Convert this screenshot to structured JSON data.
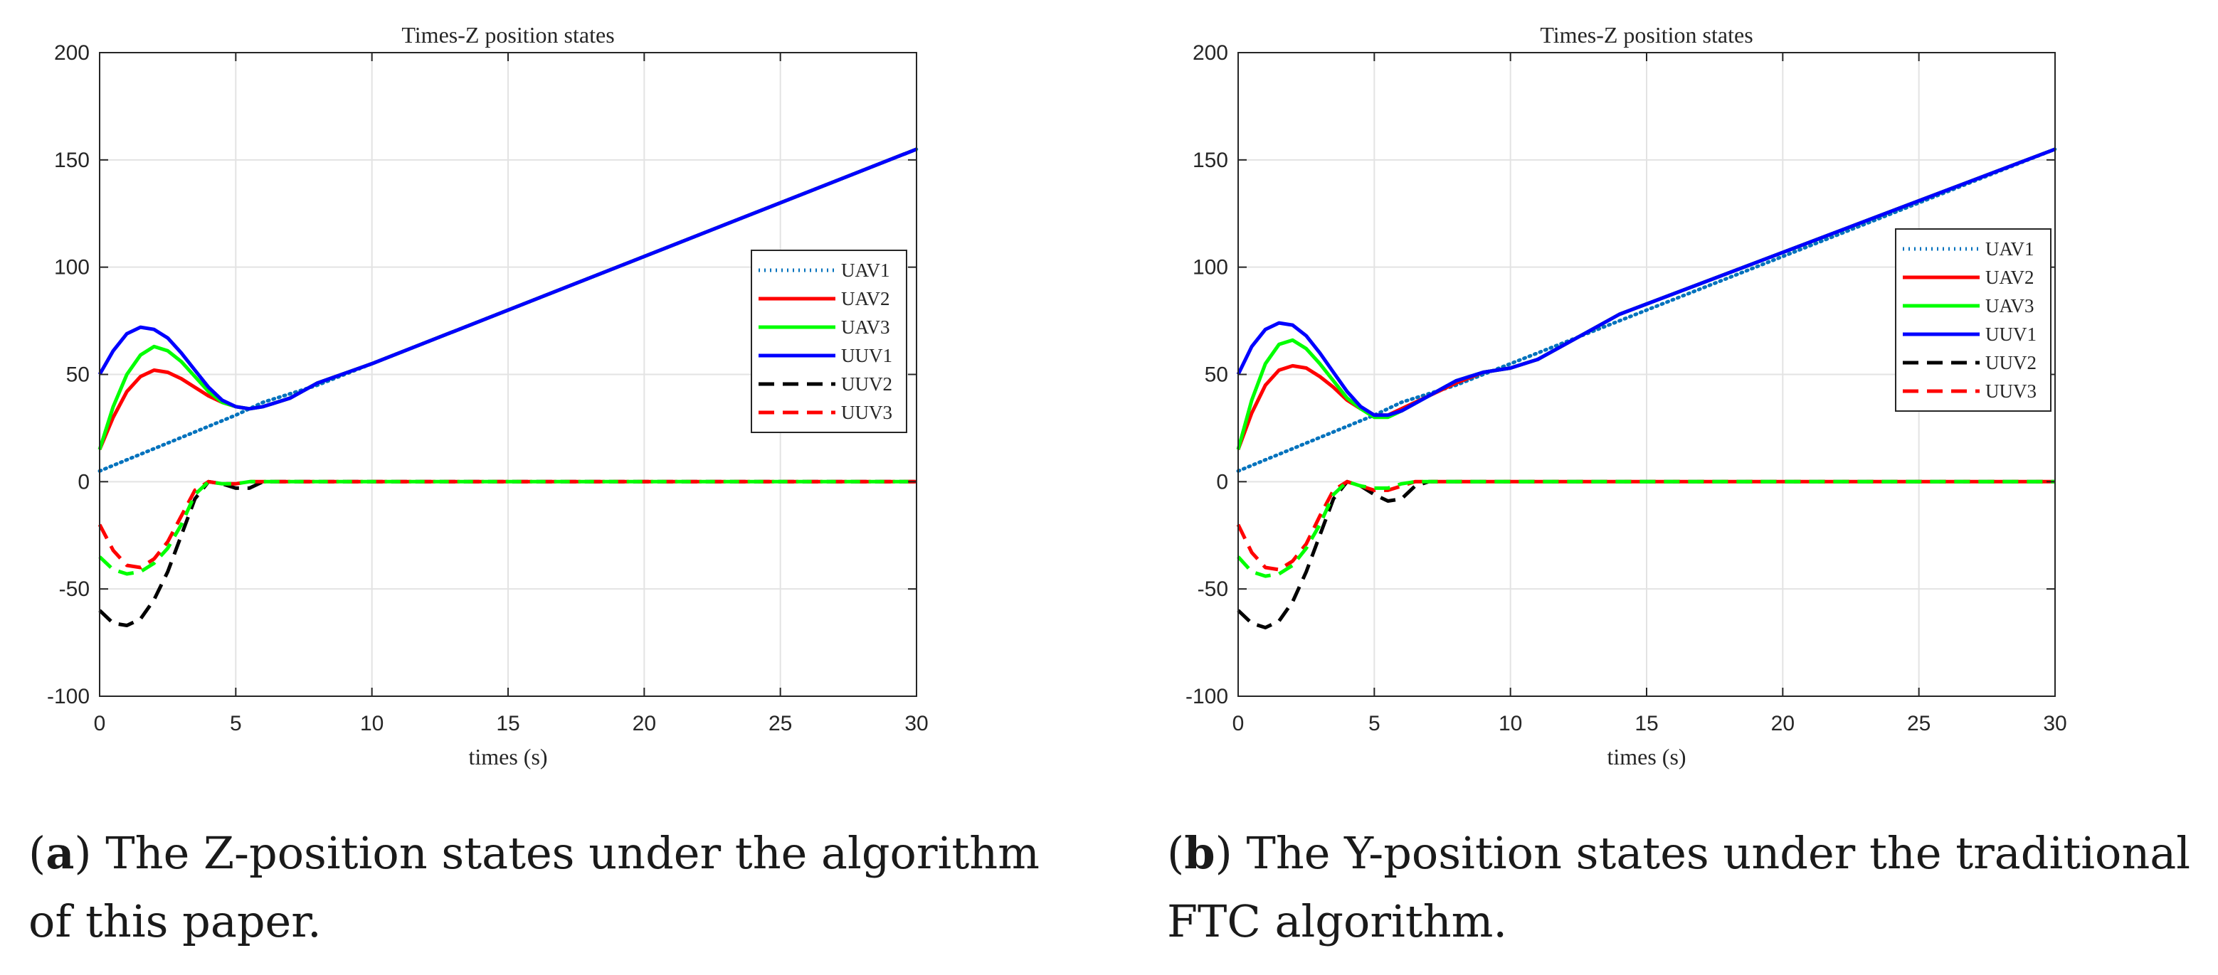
{
  "chart_data": [
    {
      "type": "line",
      "title": "Times-Z position states",
      "xlabel": "times (s)",
      "ylabel": "",
      "xlim": [
        0,
        30
      ],
      "ylim": [
        -100,
        200
      ],
      "xticks": [
        0,
        5,
        10,
        15,
        20,
        25,
        30
      ],
      "yticks": [
        -100,
        -50,
        0,
        50,
        100,
        150,
        200
      ],
      "grid": true,
      "legend_position": "right",
      "series": [
        {
          "name": "UAV1",
          "color": "#0072BD",
          "style": "dotted",
          "x": [
            0,
            5,
            6,
            8,
            10,
            30
          ],
          "y": [
            5,
            31,
            37,
            45,
            55,
            155
          ]
        },
        {
          "name": "UAV2",
          "color": "#FF0000",
          "style": "solid",
          "x": [
            0,
            0.5,
            1,
            1.5,
            2,
            2.5,
            3,
            3.5,
            4,
            4.5,
            5,
            5.5,
            6,
            7,
            8,
            10,
            30
          ],
          "y": [
            15,
            30,
            42,
            49,
            52,
            51,
            48,
            44,
            40,
            37,
            35,
            34,
            35,
            39,
            46,
            55,
            155
          ]
        },
        {
          "name": "UAV3",
          "color": "#00FF00",
          "style": "solid",
          "x": [
            0,
            0.5,
            1,
            1.5,
            2,
            2.5,
            3,
            3.5,
            4,
            4.5,
            5,
            5.5,
            6,
            7,
            8,
            10,
            30
          ],
          "y": [
            15,
            35,
            50,
            59,
            63,
            61,
            56,
            49,
            42,
            37,
            35,
            34,
            35,
            39,
            46,
            55,
            155
          ]
        },
        {
          "name": "UUV1",
          "color": "#0000FF",
          "style": "solid",
          "x": [
            0,
            0.5,
            1,
            1.5,
            2,
            2.5,
            3,
            3.5,
            4,
            4.5,
            5,
            5.5,
            6,
            7,
            8,
            10,
            30
          ],
          "y": [
            50,
            61,
            69,
            72,
            71,
            67,
            60,
            52,
            44,
            38,
            35,
            34,
            35,
            39,
            46,
            55,
            155
          ]
        },
        {
          "name": "UUV2",
          "color": "#000000",
          "style": "dashed",
          "x": [
            0,
            0.5,
            1,
            1.5,
            2,
            2.5,
            3,
            3.5,
            4,
            4.5,
            5,
            5.5,
            6,
            30
          ],
          "y": [
            -60,
            -66,
            -67,
            -64,
            -55,
            -42,
            -25,
            -8,
            0,
            -1,
            -3,
            -3,
            0,
            0
          ]
        },
        {
          "name": "UUV3",
          "color": "#FF0000",
          "style": "dashed",
          "x": [
            0,
            0.5,
            1,
            1.5,
            2,
            2.5,
            3,
            3.5,
            4,
            4.5,
            5,
            5.5,
            6,
            30
          ],
          "y": [
            -20,
            -32,
            -39,
            -40,
            -36,
            -28,
            -16,
            -4,
            0,
            -1,
            -1,
            0,
            0,
            0
          ]
        },
        {
          "name": "",
          "color": "#00FF00",
          "style": "dashed",
          "x": [
            0,
            0.5,
            1,
            1.5,
            2,
            2.5,
            3,
            3.5,
            4,
            4.5,
            5,
            5.5,
            6,
            30
          ],
          "y": [
            -35,
            -41,
            -43,
            -42,
            -38,
            -31,
            -20,
            -6,
            0,
            -1,
            -1,
            0,
            0,
            0
          ]
        }
      ]
    },
    {
      "type": "line",
      "title": "Times-Z position states",
      "xlabel": "times (s)",
      "ylabel": "",
      "xlim": [
        0,
        30
      ],
      "ylim": [
        -100,
        200
      ],
      "xticks": [
        0,
        5,
        10,
        15,
        20,
        25,
        30
      ],
      "yticks": [
        -100,
        -50,
        0,
        50,
        100,
        150,
        200
      ],
      "grid": true,
      "legend_position": "top-right",
      "series": [
        {
          "name": "UAV1",
          "color": "#0072BD",
          "style": "dotted",
          "x": [
            0,
            5,
            6,
            8,
            10,
            13,
            30
          ],
          "y": [
            5,
            31,
            37,
            45,
            55,
            70,
            155
          ]
        },
        {
          "name": "UAV2",
          "color": "#FF0000",
          "style": "solid",
          "x": [
            0,
            0.5,
            1,
            1.5,
            2,
            2.5,
            3,
            3.5,
            4,
            4.5,
            5,
            5.5,
            6,
            7,
            8,
            9,
            10,
            11,
            12,
            13,
            14,
            30
          ],
          "y": [
            15,
            32,
            45,
            52,
            54,
            53,
            49,
            44,
            38,
            34,
            31,
            31,
            34,
            40,
            46,
            51,
            53,
            57,
            64,
            71,
            78,
            155
          ]
        },
        {
          "name": "UAV3",
          "color": "#00FF00",
          "style": "solid",
          "x": [
            0,
            0.5,
            1,
            1.5,
            2,
            2.5,
            3,
            3.5,
            4,
            4.5,
            5,
            5.5,
            6,
            7,
            8,
            9,
            10,
            11,
            12,
            13,
            14,
            30
          ],
          "y": [
            15,
            38,
            55,
            64,
            66,
            62,
            55,
            47,
            39,
            34,
            30,
            30,
            33,
            40,
            47,
            51,
            53,
            57,
            64,
            71,
            78,
            155
          ]
        },
        {
          "name": "UUV1",
          "color": "#0000FF",
          "style": "solid",
          "x": [
            0,
            0.5,
            1,
            1.5,
            2,
            2.5,
            3,
            3.5,
            4,
            4.5,
            5,
            5.5,
            6,
            7,
            8,
            9,
            10,
            11,
            12,
            13,
            14,
            30
          ],
          "y": [
            50,
            63,
            71,
            74,
            73,
            68,
            60,
            51,
            42,
            35,
            31,
            31,
            33,
            40,
            47,
            51,
            53,
            57,
            64,
            71,
            78,
            155
          ]
        },
        {
          "name": "UUV2",
          "color": "#000000",
          "style": "dashed",
          "x": [
            0,
            0.5,
            1,
            1.5,
            2,
            2.5,
            3,
            3.5,
            4,
            4.5,
            5,
            5.5,
            6,
            6.5,
            7,
            30
          ],
          "y": [
            -60,
            -66,
            -68,
            -65,
            -56,
            -42,
            -25,
            -8,
            0,
            -2,
            -6,
            -9,
            -8,
            -2,
            0,
            0
          ]
        },
        {
          "name": "UUV3",
          "color": "#FF0000",
          "style": "dashed",
          "x": [
            0,
            0.5,
            1,
            1.5,
            2,
            2.5,
            3,
            3.5,
            4,
            4.5,
            5,
            5.5,
            6,
            6.5,
            30
          ],
          "y": [
            -20,
            -33,
            -40,
            -41,
            -37,
            -29,
            -16,
            -4,
            0,
            -2,
            -4,
            -4,
            -2,
            0,
            0
          ]
        },
        {
          "name": "",
          "color": "#00FF00",
          "style": "dashed",
          "x": [
            0,
            0.5,
            1,
            1.5,
            2,
            2.5,
            3,
            3.5,
            4,
            4.5,
            5,
            5.5,
            6,
            6.5,
            30
          ],
          "y": [
            -35,
            -42,
            -44,
            -43,
            -39,
            -31,
            -20,
            -6,
            0,
            -2,
            -3,
            -3,
            -1,
            0,
            0
          ]
        }
      ]
    }
  ],
  "captions": [
    {
      "label": "a",
      "text": "The Z-position states under the algorithm",
      "text2": "of this paper."
    },
    {
      "label": "b",
      "text": "The Y-position states under the traditional",
      "text2": "FTC algorithm."
    }
  ]
}
